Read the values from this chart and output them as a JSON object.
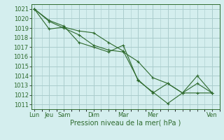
{
  "bg_color": "#d4eeee",
  "grid_color": "#aacccc",
  "line_color": "#2d6a2d",
  "xlabel": "Pression niveau de la mer( hPa )",
  "xlabel_fontsize": 7,
  "tick_fontsize": 6,
  "ylim": [
    1010.5,
    1021.5
  ],
  "yticks": [
    1011,
    1012,
    1013,
    1014,
    1015,
    1016,
    1017,
    1018,
    1019,
    1020,
    1021
  ],
  "xtick_labels": [
    "Lun",
    "Jeu",
    "Sam",
    "",
    "Dim",
    "",
    "Mar",
    "",
    "Mer",
    "",
    "",
    "",
    "Ven"
  ],
  "xtick_positions": [
    0,
    1,
    2,
    3,
    4,
    5,
    6,
    7,
    8,
    9,
    10,
    11,
    12
  ],
  "xlim": [
    -0.2,
    12.5
  ],
  "series": [
    {
      "x": [
        0,
        1,
        2,
        3,
        4,
        5,
        6,
        7,
        8,
        9,
        10,
        11,
        12
      ],
      "y": [
        1021,
        1019.7,
        1019.0,
        1018.3,
        1017.2,
        1016.7,
        1016.5,
        1015.5,
        1013.8,
        1013.2,
        1012.2,
        1012.2,
        1012.2
      ]
    },
    {
      "x": [
        0,
        1,
        2,
        3,
        4,
        5,
        6,
        7,
        8,
        9,
        10,
        11,
        12
      ],
      "y": [
        1021,
        1018.9,
        1019.1,
        1018.7,
        1018.5,
        1017.5,
        1016.6,
        1013.6,
        1012.2,
        1013.2,
        1012.2,
        1014.0,
        1012.2
      ]
    },
    {
      "x": [
        0,
        1,
        2,
        3,
        4,
        5,
        6,
        7,
        8,
        9,
        10,
        11,
        12
      ],
      "y": [
        1021,
        1019.8,
        1019.2,
        1017.5,
        1017.0,
        1016.5,
        1017.2,
        1013.5,
        1012.3,
        1011.1,
        1012.2,
        1013.2,
        1012.2
      ]
    }
  ]
}
